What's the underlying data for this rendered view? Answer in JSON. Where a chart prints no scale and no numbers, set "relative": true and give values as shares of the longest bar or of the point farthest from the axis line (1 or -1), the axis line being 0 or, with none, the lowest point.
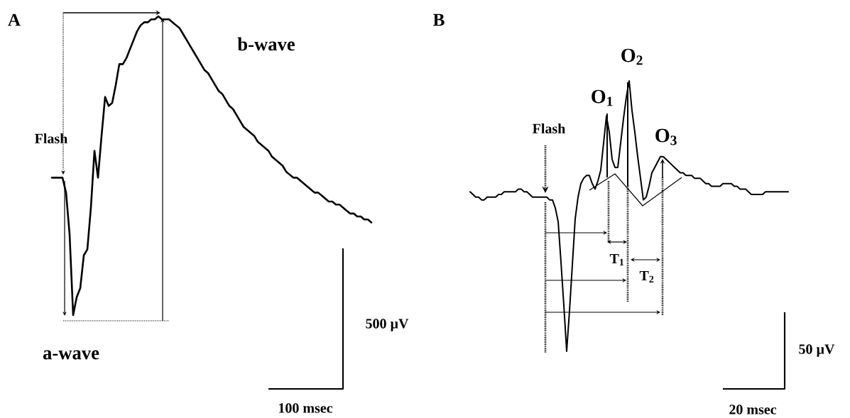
{
  "chart_data": [
    {
      "type": "line",
      "title": "A",
      "relative": true,
      "categories": [
        null,
        null,
        null,
        null,
        null,
        null,
        null,
        null,
        null,
        null,
        null,
        null,
        null,
        null,
        null,
        null,
        null,
        null,
        null,
        null,
        null,
        null,
        null,
        null,
        null,
        null,
        null,
        null,
        null,
        null,
        null,
        null,
        null,
        null,
        null,
        null,
        null,
        null,
        null,
        null,
        null,
        null,
        null,
        null,
        null,
        null,
        null,
        null,
        null,
        null,
        null,
        null,
        null,
        null,
        null,
        null,
        null,
        null,
        null,
        null,
        null,
        null,
        null,
        null,
        null,
        null,
        null,
        null,
        null,
        null,
        null,
        null,
        null,
        null,
        null,
        null,
        null,
        null,
        null,
        null,
        null,
        null,
        null,
        null,
        null,
        null,
        null,
        null,
        null,
        null,
        null
      ],
      "series": [
        {
          "color": "#000000",
          "values": [
            0.46,
            0.46,
            0.46,
            0.46,
            0.41,
            0.27,
            0,
            0.06,
            0.09,
            0.2,
            0.22,
            0.36,
            0.55,
            0.46,
            0.6,
            0.73,
            0.7,
            0.71,
            0.77,
            0.84,
            0.84,
            0.86,
            0.89,
            0.92,
            0.95,
            0.97,
            0.98,
            0.98,
            0.99,
            0.99,
            1,
            0.99,
            0.99,
            0.99,
            0.98,
            0.97,
            0.96,
            0.94,
            0.92,
            0.9,
            0.88,
            0.86,
            0.84,
            0.82,
            0.81,
            0.79,
            0.77,
            0.75,
            0.74,
            0.72,
            0.7,
            0.69,
            0.67,
            0.65,
            0.63,
            0.62,
            0.61,
            0.6,
            0.58,
            0.57,
            0.56,
            0.55,
            0.53,
            0.52,
            0.51,
            0.5,
            0.48,
            0.47,
            0.46,
            0.46,
            0.45,
            0.44,
            0.43,
            0.42,
            0.41,
            0.41,
            0.4,
            0.39,
            0.38,
            0.38,
            0.37,
            0.37,
            0.36,
            0.35,
            0.34,
            0.34,
            0.33,
            0.33,
            0.32,
            0.32,
            0.31
          ]
        }
      ],
      "annotations": [
        "Flash",
        "b-wave",
        "a-wave",
        "500 µV",
        "100 msec"
      ]
    },
    {
      "type": "line",
      "title": "B",
      "relative": true,
      "categories": [
        null,
        null,
        null,
        null,
        null,
        null,
        null,
        null,
        null,
        null,
        null,
        null,
        null,
        null,
        null,
        null,
        null,
        null,
        null,
        null,
        null,
        null,
        null,
        null,
        null,
        null,
        null,
        null,
        null,
        null,
        null,
        null,
        null,
        null,
        null,
        null,
        null,
        null,
        null,
        null,
        null,
        null,
        null,
        null,
        null,
        null,
        null,
        null,
        null,
        null,
        null,
        null,
        null,
        null,
        null,
        null,
        null,
        null,
        null,
        null,
        null,
        null,
        null,
        null,
        null,
        null,
        null,
        null,
        null,
        null,
        null,
        null,
        null,
        null,
        null,
        null,
        null,
        null,
        null,
        null,
        null,
        null,
        null,
        null,
        null,
        null,
        null,
        null,
        null,
        null,
        null,
        null,
        null,
        null,
        null,
        null,
        null,
        null,
        null,
        null,
        null,
        null,
        null,
        null,
        null,
        null,
        null,
        null,
        null,
        null,
        null,
        null,
        null
      ],
      "series": [
        {
          "color": "#000000",
          "values": [
            0.59,
            0.58,
            0.57,
            0.57,
            0.56,
            0.56,
            0.57,
            0.57,
            0.57,
            0.57,
            0.58,
            0.58,
            0.59,
            0.59,
            0.59,
            0.59,
            0.59,
            0.6,
            0.6,
            0.59,
            0.59,
            0.58,
            0.57,
            0.57,
            0.57,
            0.57,
            0.57,
            0.57,
            0.56,
            0.56,
            0.53,
            0.48,
            0.33,
            0.17,
            0,
            0.15,
            0.32,
            0.49,
            0.57,
            0.62,
            0.64,
            0.65,
            0.65,
            0.62,
            0.6,
            0.63,
            0.67,
            0.77,
            0.87,
            0.81,
            0.71,
            0.68,
            0.68,
            0.77,
            0.86,
            0.94,
            1,
            0.89,
            0.81,
            0.72,
            0.64,
            0.56,
            0.57,
            0.61,
            0.66,
            0.68,
            0.7,
            0.72,
            0.72,
            0.71,
            0.7,
            0.69,
            0.68,
            0.67,
            0.66,
            0.66,
            0.65,
            0.65,
            0.65,
            0.64,
            0.64,
            0.64,
            0.63,
            0.62,
            0.62,
            0.61,
            0.61,
            0.61,
            0.61,
            0.62,
            0.62,
            0.62,
            0.62,
            0.61,
            0.61,
            0.6,
            0.6,
            0.6,
            0.59,
            0.58,
            0.58,
            0.58,
            0.58,
            0.58,
            0.59,
            0.59,
            0.59,
            0.59,
            0.59,
            0.59,
            0.59,
            0.59,
            0.59
          ]
        }
      ],
      "annotations": [
        "Flash",
        "O$_{1}$",
        "O$_{2}$",
        "O$_{3}$",
        "T$_{1}$",
        "T$_{2}$",
        "50 µV",
        "20 msec"
      ]
    }
  ]
}
